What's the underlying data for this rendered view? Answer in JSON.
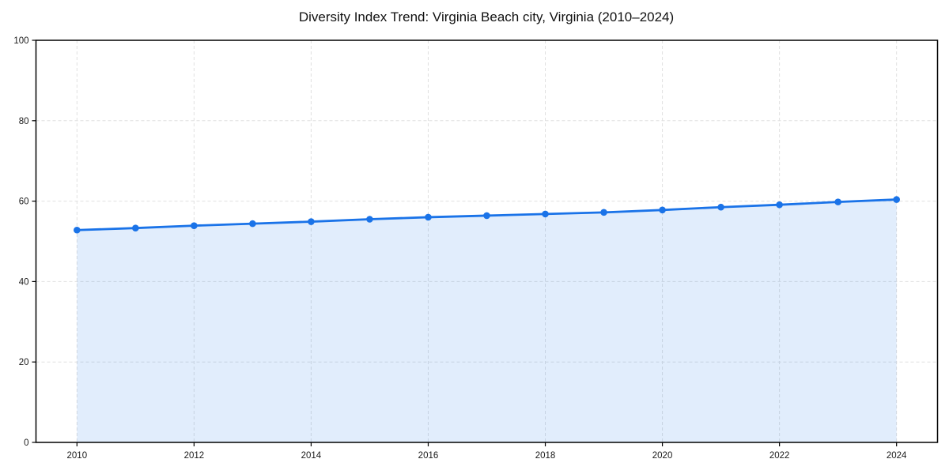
{
  "chart_data": {
    "type": "line",
    "title": "Diversity Index Trend: Virginia Beach city, Virginia (2010–2024)",
    "xlabel": "",
    "ylabel": "",
    "x": [
      2010,
      2011,
      2012,
      2013,
      2014,
      2015,
      2016,
      2017,
      2018,
      2019,
      2020,
      2021,
      2022,
      2023,
      2024
    ],
    "values": [
      52.8,
      53.3,
      53.9,
      54.4,
      54.9,
      55.5,
      56.0,
      56.4,
      56.8,
      57.2,
      57.8,
      58.5,
      59.1,
      59.8,
      60.4
    ],
    "series_name": "Diversity Index",
    "x_ticks": [
      2010,
      2012,
      2014,
      2016,
      2018,
      2020,
      2022,
      2024
    ],
    "y_ticks": [
      0,
      20,
      40,
      60,
      80,
      100
    ],
    "xlim": [
      2009.3,
      2024.7
    ],
    "ylim": [
      0,
      100
    ],
    "grid": true,
    "grid_style": "dashed",
    "legend": "none",
    "area_fill": true,
    "markers": true,
    "style": {
      "line_color": "#1a73e8",
      "marker_color": "#1a73e8",
      "fill_color": "rgba(26, 115, 232, 0.13)",
      "grid_color": "#e0e0e0",
      "spine_color": "#000000",
      "tick_color": "#000000",
      "title_color": "#111111",
      "background": "#ffffff"
    }
  }
}
